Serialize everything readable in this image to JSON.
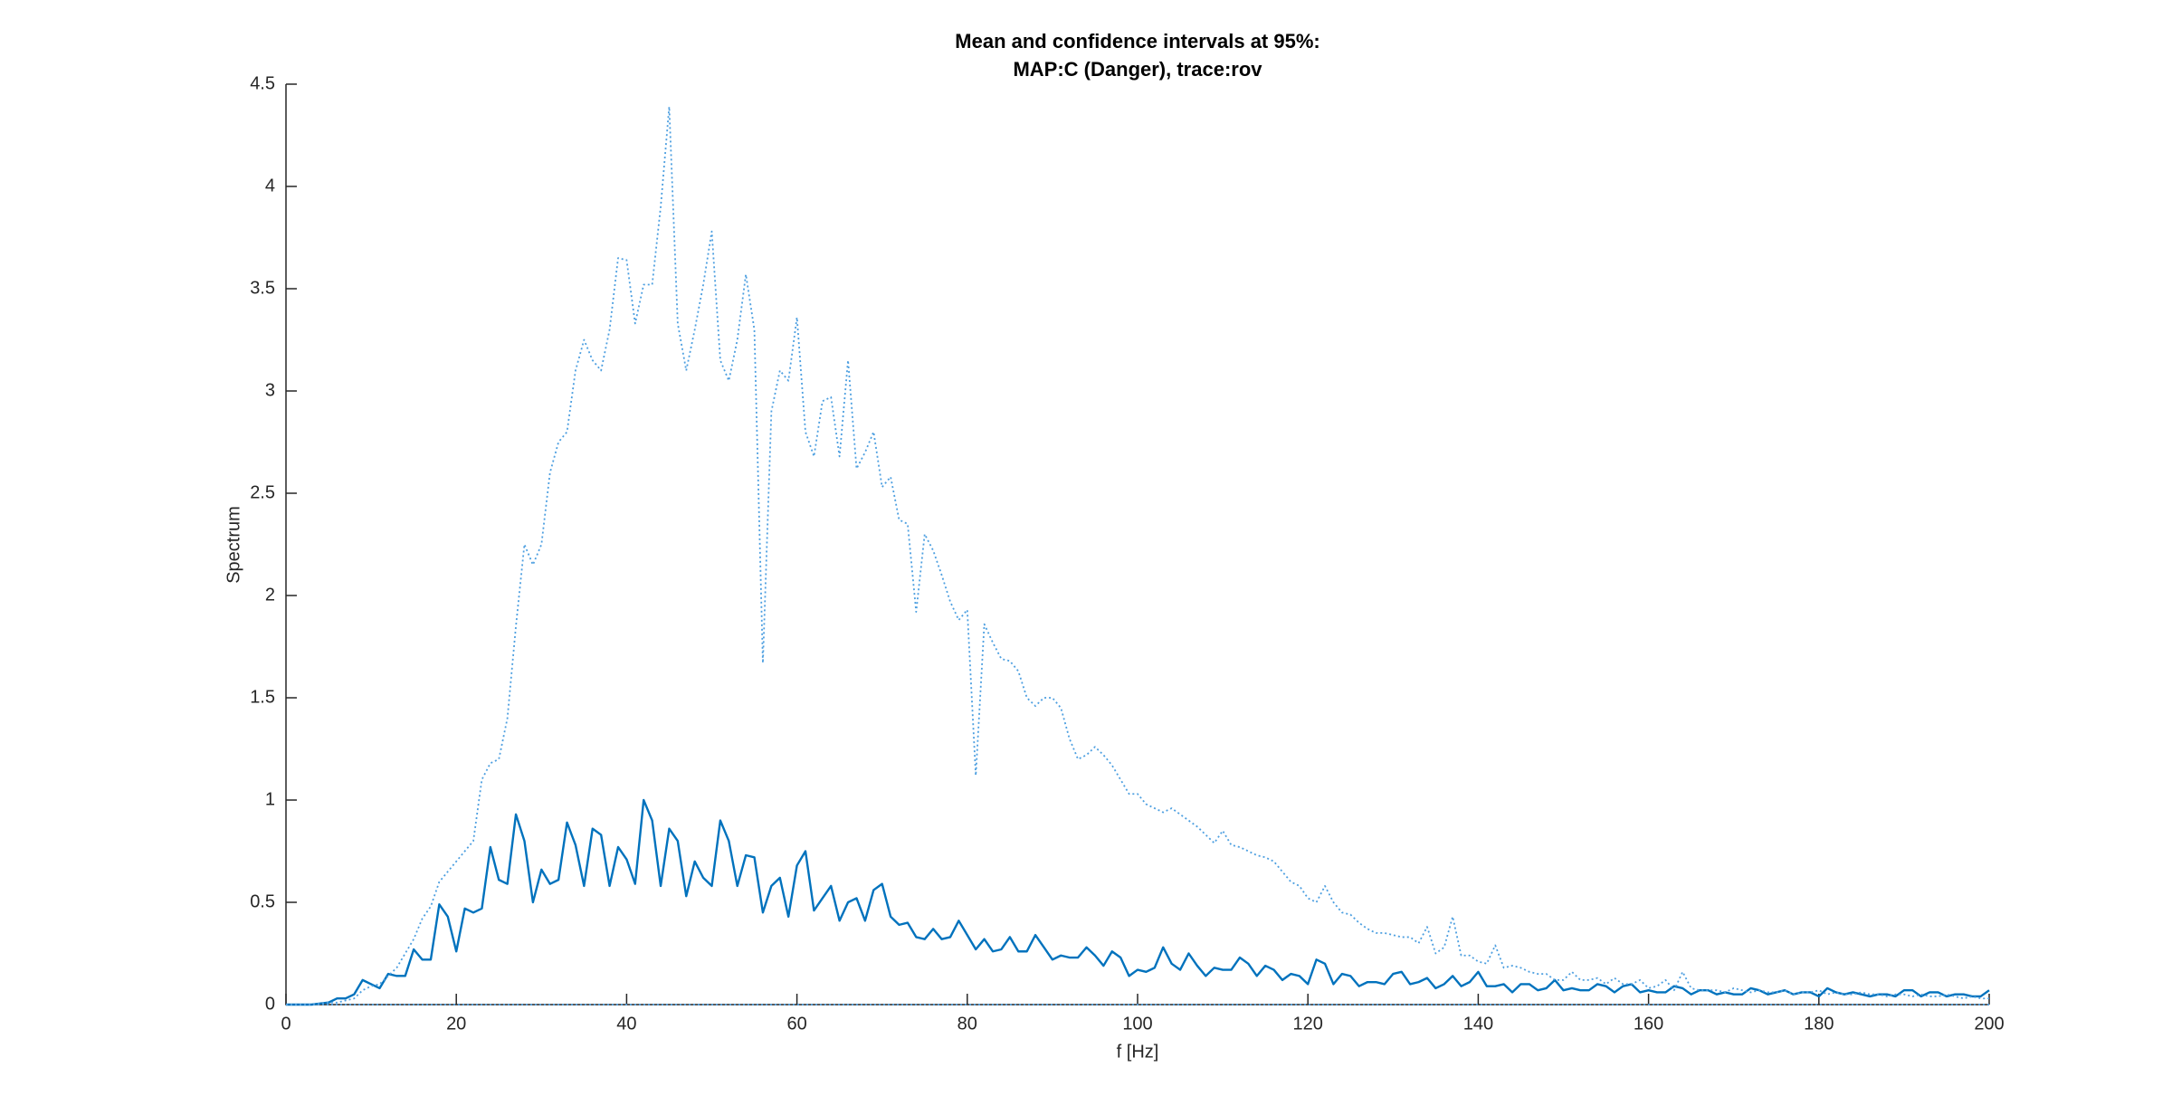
{
  "chart_data": {
    "type": "line",
    "title": [
      "Mean and confidence intervals at 95%:",
      "MAP:C (Danger), trace:rov"
    ],
    "xlabel": "f [Hz]",
    "ylabel": "Spectrum",
    "xlim": [
      0,
      200
    ],
    "ylim": [
      0,
      4.5
    ],
    "xticks": [
      0,
      20,
      40,
      60,
      80,
      100,
      120,
      140,
      160,
      180,
      200
    ],
    "yticks": [
      0,
      0.5,
      1,
      1.5,
      2,
      2.5,
      3,
      3.5,
      4,
      4.5
    ],
    "grid": false,
    "x": [
      0,
      1,
      2,
      3,
      4,
      5,
      6,
      7,
      8,
      9,
      10,
      11,
      12,
      13,
      14,
      15,
      16,
      17,
      18,
      19,
      20,
      21,
      22,
      23,
      24,
      25,
      26,
      27,
      28,
      29,
      30,
      31,
      32,
      33,
      34,
      35,
      36,
      37,
      38,
      39,
      40,
      41,
      42,
      43,
      44,
      45,
      46,
      47,
      48,
      49,
      50,
      51,
      52,
      53,
      54,
      55,
      56,
      57,
      58,
      59,
      60,
      61,
      62,
      63,
      64,
      65,
      66,
      67,
      68,
      69,
      70,
      71,
      72,
      73,
      74,
      75,
      76,
      77,
      78,
      79,
      80,
      81,
      82,
      83,
      84,
      85,
      86,
      87,
      88,
      89,
      90,
      91,
      92,
      93,
      94,
      95,
      96,
      97,
      98,
      99,
      100,
      101,
      102,
      103,
      104,
      105,
      106,
      107,
      108,
      109,
      110,
      111,
      112,
      113,
      114,
      115,
      116,
      117,
      118,
      119,
      120,
      121,
      122,
      123,
      124,
      125,
      126,
      127,
      128,
      129,
      130,
      131,
      132,
      133,
      134,
      135,
      136,
      137,
      138,
      139,
      140,
      141,
      142,
      143,
      144,
      145,
      146,
      147,
      148,
      149,
      150,
      151,
      152,
      153,
      154,
      155,
      156,
      157,
      158,
      159,
      160,
      161,
      162,
      163,
      164,
      165,
      166,
      167,
      168,
      169,
      170,
      171,
      172,
      173,
      174,
      175,
      176,
      177,
      178,
      179,
      180,
      181,
      182,
      183,
      184,
      185,
      186,
      187,
      188,
      189,
      190,
      191,
      192,
      193,
      194,
      195,
      196,
      197,
      198,
      199,
      200
    ],
    "series": [
      {
        "color": "#0072bd",
        "dash": "solid",
        "values": [
          0,
          0,
          0,
          0,
          0.005,
          0.01,
          0.03,
          0.03,
          0.05,
          0.12,
          0.1,
          0.08,
          0.15,
          0.14,
          0.14,
          0.27,
          0.22,
          0.22,
          0.49,
          0.43,
          0.26,
          0.47,
          0.45,
          0.47,
          0.77,
          0.61,
          0.59,
          0.93,
          0.8,
          0.5,
          0.66,
          0.59,
          0.61,
          0.89,
          0.78,
          0.58,
          0.86,
          0.83,
          0.58,
          0.77,
          0.71,
          0.59,
          1.0,
          0.9,
          0.58,
          0.86,
          0.8,
          0.53,
          0.7,
          0.62,
          0.58,
          0.9,
          0.8,
          0.58,
          0.73,
          0.72,
          0.45,
          0.58,
          0.62,
          0.43,
          0.68,
          0.75,
          0.46,
          0.52,
          0.58,
          0.41,
          0.5,
          0.52,
          0.41,
          0.56,
          0.59,
          0.43,
          0.39,
          0.4,
          0.33,
          0.32,
          0.37,
          0.32,
          0.33,
          0.41,
          0.34,
          0.27,
          0.32,
          0.26,
          0.27,
          0.33,
          0.26,
          0.26,
          0.34,
          0.28,
          0.22,
          0.24,
          0.23,
          0.23,
          0.28,
          0.24,
          0.19,
          0.26,
          0.23,
          0.14,
          0.17,
          0.16,
          0.18,
          0.28,
          0.2,
          0.17,
          0.25,
          0.19,
          0.14,
          0.18,
          0.17,
          0.17,
          0.23,
          0.2,
          0.14,
          0.19,
          0.17,
          0.12,
          0.15,
          0.14,
          0.1,
          0.22,
          0.2,
          0.1,
          0.15,
          0.14,
          0.09,
          0.11,
          0.11,
          0.1,
          0.15,
          0.16,
          0.1,
          0.11,
          0.13,
          0.08,
          0.1,
          0.14,
          0.09,
          0.11,
          0.16,
          0.09,
          0.09,
          0.1,
          0.06,
          0.1,
          0.1,
          0.07,
          0.08,
          0.12,
          0.07,
          0.08,
          0.07,
          0.07,
          0.1,
          0.09,
          0.06,
          0.09,
          0.1,
          0.06,
          0.07,
          0.06,
          0.06,
          0.09,
          0.08,
          0.05,
          0.07,
          0.07,
          0.05,
          0.06,
          0.05,
          0.05,
          0.08,
          0.07,
          0.05,
          0.06,
          0.07,
          0.05,
          0.06,
          0.06,
          0.04,
          0.08,
          0.06,
          0.05,
          0.06,
          0.05,
          0.04,
          0.05,
          0.05,
          0.04,
          0.07,
          0.07,
          0.04,
          0.06,
          0.06,
          0.04,
          0.05,
          0.05,
          0.04,
          0.04,
          0.07
        ]
      },
      {
        "color": "#4d9fe0",
        "dash": "dotted",
        "values": [
          0,
          0,
          0,
          0,
          0.005,
          0.01,
          0.01,
          0.02,
          0.03,
          0.07,
          0.09,
          0.1,
          0.14,
          0.18,
          0.25,
          0.32,
          0.42,
          0.48,
          0.6,
          0.65,
          0.7,
          0.75,
          0.8,
          1.1,
          1.18,
          1.2,
          1.4,
          1.85,
          2.25,
          2.15,
          2.25,
          2.6,
          2.75,
          2.8,
          3.1,
          3.25,
          3.15,
          3.1,
          3.3,
          3.65,
          3.64,
          3.33,
          3.52,
          3.52,
          3.9,
          4.39,
          3.33,
          3.1,
          3.3,
          3.52,
          3.78,
          3.15,
          3.05,
          3.25,
          3.57,
          3.3,
          1.67,
          2.9,
          3.1,
          3.05,
          3.36,
          2.8,
          2.68,
          2.95,
          2.97,
          2.68,
          3.15,
          2.62,
          2.7,
          2.8,
          2.53,
          2.58,
          2.37,
          2.35,
          1.92,
          2.3,
          2.22,
          2.1,
          1.97,
          1.88,
          1.93,
          1.12,
          1.86,
          1.77,
          1.69,
          1.68,
          1.63,
          1.5,
          1.46,
          1.5,
          1.5,
          1.45,
          1.3,
          1.2,
          1.22,
          1.26,
          1.22,
          1.17,
          1.1,
          1.03,
          1.03,
          0.98,
          0.96,
          0.94,
          0.96,
          0.93,
          0.9,
          0.87,
          0.83,
          0.79,
          0.85,
          0.78,
          0.77,
          0.75,
          0.73,
          0.72,
          0.7,
          0.65,
          0.6,
          0.58,
          0.52,
          0.5,
          0.58,
          0.5,
          0.45,
          0.44,
          0.4,
          0.37,
          0.35,
          0.35,
          0.34,
          0.33,
          0.33,
          0.3,
          0.38,
          0.25,
          0.28,
          0.43,
          0.24,
          0.24,
          0.21,
          0.2,
          0.29,
          0.18,
          0.19,
          0.18,
          0.16,
          0.15,
          0.15,
          0.12,
          0.12,
          0.16,
          0.12,
          0.12,
          0.13,
          0.1,
          0.13,
          0.1,
          0.1,
          0.12,
          0.08,
          0.09,
          0.12,
          0.07,
          0.16,
          0.08,
          0.07,
          0.07,
          0.07,
          0.06,
          0.08,
          0.07,
          0.06,
          0.07,
          0.06,
          0.06,
          0.07,
          0.05,
          0.06,
          0.06,
          0.07,
          0.05,
          0.06,
          0.05,
          0.05,
          0.06,
          0.05,
          0.05,
          0.04,
          0.05,
          0.05,
          0.04,
          0.05,
          0.04,
          0.04,
          0.05,
          0.04,
          0.03,
          0.04,
          0.03,
          0.03
        ]
      },
      {
        "color": "#4d9fe0",
        "dash": "dotted",
        "values": [
          0,
          0,
          0,
          0,
          0,
          0,
          0,
          0,
          0,
          0,
          0,
          0,
          0,
          0,
          0,
          0,
          0,
          0,
          0,
          0,
          0,
          0,
          0,
          0,
          0,
          0,
          0,
          0,
          0,
          0,
          0,
          0,
          0,
          0,
          0,
          0,
          0,
          0,
          0,
          0,
          0,
          0,
          0,
          0,
          0,
          0,
          0,
          0,
          0,
          0,
          0,
          0,
          0,
          0,
          0,
          0,
          0,
          0,
          0,
          0,
          0,
          0,
          0,
          0,
          0,
          0,
          0,
          0,
          0,
          0,
          0,
          0,
          0,
          0,
          0,
          0,
          0,
          0,
          0,
          0,
          0,
          0,
          0,
          0,
          0,
          0,
          0,
          0,
          0,
          0,
          0,
          0,
          0,
          0,
          0,
          0,
          0,
          0,
          0,
          0,
          0,
          0,
          0,
          0,
          0,
          0,
          0,
          0,
          0,
          0,
          0,
          0,
          0,
          0,
          0,
          0,
          0,
          0,
          0,
          0,
          0,
          0,
          0,
          0,
          0,
          0,
          0,
          0,
          0,
          0,
          0,
          0,
          0,
          0,
          0,
          0,
          0,
          0,
          0,
          0,
          0,
          0,
          0,
          0,
          0,
          0,
          0,
          0,
          0,
          0,
          0,
          0,
          0,
          0,
          0,
          0,
          0,
          0,
          0,
          0,
          0,
          0,
          0,
          0,
          0,
          0,
          0,
          0,
          0,
          0,
          0,
          0,
          0,
          0,
          0,
          0,
          0,
          0,
          0,
          0,
          0,
          0,
          0,
          0,
          0,
          0,
          0,
          0,
          0,
          0,
          0,
          0,
          0,
          0,
          0,
          0,
          0,
          0,
          0,
          0,
          0
        ]
      }
    ]
  }
}
